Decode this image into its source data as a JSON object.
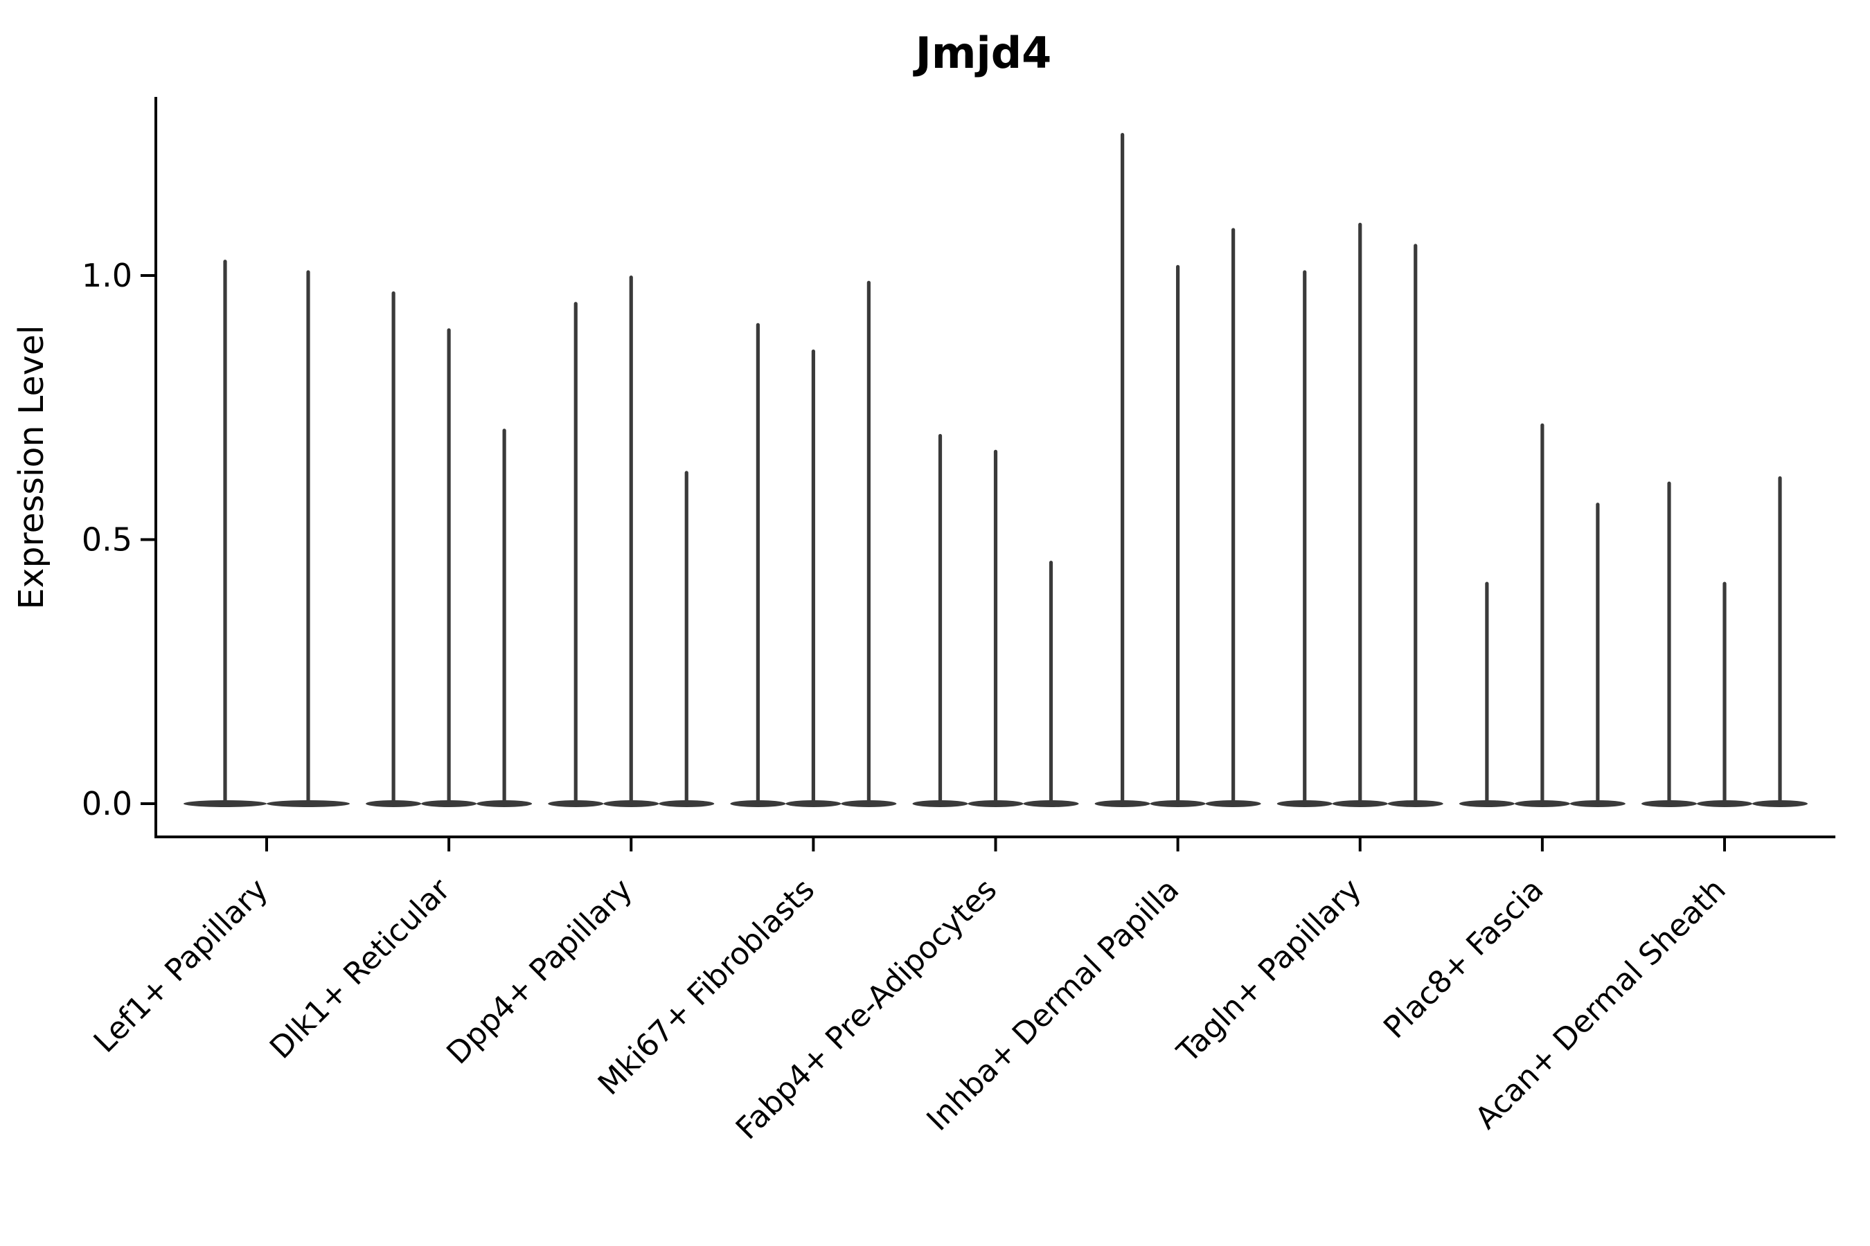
{
  "title": "Jmjd4",
  "axes": {
    "y_label": "Expression Level",
    "y_tick_labels": [
      "0.0",
      "0.5",
      "1.0"
    ],
    "x_labels": [
      "Lef1+ Papillary",
      "Dlk1+ Reticular",
      "Dpp4+ Papillary",
      "Mki67+ Fibroblasts",
      "Fabp4+ Pre-Adipocytes",
      "Inhba+ Dermal Papilla",
      "Tagln+ Papillary",
      "Plac8+ Fascia",
      "Acan+ Dermal Sheath"
    ]
  },
  "colors": {
    "violin": "#3a3a3a",
    "axis": "#000000",
    "text": "#000000",
    "background": "#ffffff"
  },
  "chart_data": {
    "type": "violin",
    "title": "Jmjd4",
    "xlabel": "",
    "ylabel": "Expression Level",
    "ylim": [
      0,
      1.34
    ],
    "yticks": [
      0.0,
      0.5,
      1.0
    ],
    "grid": false,
    "legend_position": "none",
    "note": "Zero-inflated single-cell expression: each violin is a wide flat base at 0 with a thin spike up to its maximum expression value",
    "categories": [
      "Lef1+ Papillary",
      "Dlk1+ Reticular",
      "Dpp4+ Papillary",
      "Mki67+ Fibroblasts",
      "Fabp4+ Pre-Adipocytes",
      "Inhba+ Dermal Papilla",
      "Tagln+ Papillary",
      "Plac8+ Fascia",
      "Acan+ Dermal Sheath"
    ],
    "series": [
      {
        "category": "Lef1+ Papillary",
        "spike_maxima": [
          1.03,
          1.01
        ]
      },
      {
        "category": "Dlk1+ Reticular",
        "spike_maxima": [
          0.97,
          0.9,
          0.71
        ]
      },
      {
        "category": "Dpp4+ Papillary",
        "spike_maxima": [
          0.95,
          1.0,
          0.63
        ]
      },
      {
        "category": "Mki67+ Fibroblasts",
        "spike_maxima": [
          0.91,
          0.86,
          0.99
        ]
      },
      {
        "category": "Fabp4+ Pre-Adipocytes",
        "spike_maxima": [
          0.7,
          0.67,
          0.46
        ]
      },
      {
        "category": "Inhba+ Dermal Papilla",
        "spike_maxima": [
          1.27,
          1.02,
          1.09
        ]
      },
      {
        "category": "Tagln+ Papillary",
        "spike_maxima": [
          1.01,
          1.1,
          1.06
        ]
      },
      {
        "category": "Plac8+ Fascia",
        "spike_maxima": [
          0.42,
          0.72,
          0.57
        ]
      },
      {
        "category": "Acan+ Dermal Sheath",
        "spike_maxima": [
          0.61,
          0.42,
          0.62
        ]
      }
    ]
  }
}
